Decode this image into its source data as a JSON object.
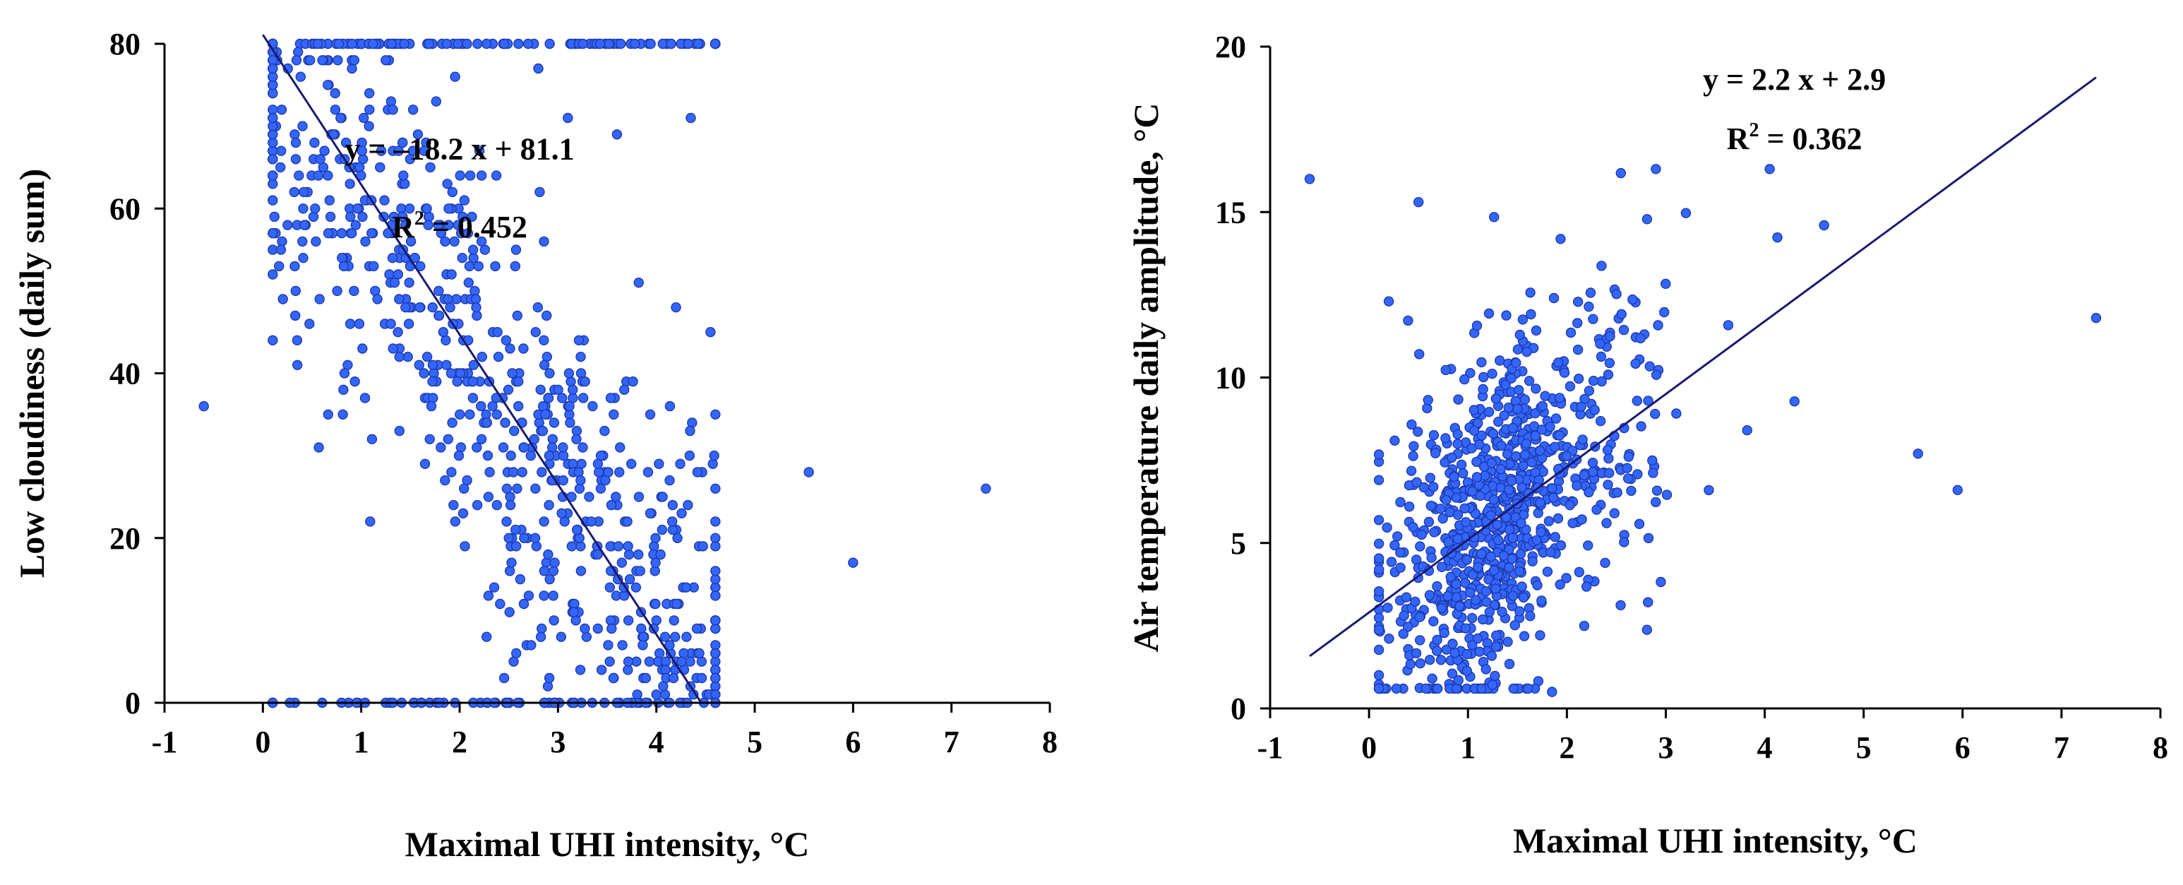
{
  "colors": {
    "point_fill": "#3366ff",
    "point_stroke": "#1f3aa8",
    "trend": "#1a1a6e",
    "axis": "#000000"
  },
  "chart_data": [
    {
      "type": "scatter",
      "title": "",
      "xlabel": "Maximal UHI intensity, °C",
      "ylabel": "Low cloudiness (daily sum)",
      "xlim": [
        -1,
        8
      ],
      "ylim": [
        0,
        80
      ],
      "x_ticks": [
        -1,
        0,
        1,
        2,
        3,
        4,
        5,
        6,
        7,
        8
      ],
      "y_ticks": [
        0,
        20,
        40,
        60,
        80
      ],
      "x_tick_labels": [
        "-1",
        "0",
        "1",
        "2",
        "3",
        "4",
        "5",
        "6",
        "7",
        "8"
      ],
      "y_tick_labels": [
        "0",
        "20",
        "40",
        "60",
        "80"
      ],
      "trendline": {
        "slope": -18.2,
        "intercept": 81.1,
        "x_range": [
          0.0,
          4.45
        ]
      },
      "equation": "y = –18.2 x + 81.1",
      "r2_label": "R",
      "r2_sup": "2",
      "r2_value": " = 0.452",
      "n_points": 900,
      "outliers": [
        [
          -0.6,
          36
        ],
        [
          5.55,
          28
        ],
        [
          6.0,
          17
        ],
        [
          7.35,
          26
        ],
        [
          4.35,
          71
        ],
        [
          3.6,
          69
        ],
        [
          4.2,
          48
        ],
        [
          4.55,
          45
        ],
        [
          2.8,
          77
        ],
        [
          3.1,
          71
        ]
      ]
    },
    {
      "type": "scatter",
      "title": "",
      "xlabel": "Maximal UHI intensity, °C",
      "ylabel": "Air temperature daily amplitude, °C",
      "xlim": [
        -1,
        8
      ],
      "ylim": [
        0,
        20
      ],
      "x_ticks": [
        -1,
        0,
        1,
        2,
        3,
        4,
        5,
        6,
        7,
        8
      ],
      "y_ticks": [
        0,
        5,
        10,
        15,
        20
      ],
      "x_tick_labels": [
        "-1",
        "0",
        "1",
        "2",
        "3",
        "4",
        "5",
        "6",
        "7",
        "8"
      ],
      "y_tick_labels": [
        "0",
        "5",
        "10",
        "15",
        "20"
      ],
      "trendline": {
        "slope": 2.2,
        "intercept": 2.9,
        "x_range": [
          -0.6,
          7.35
        ]
      },
      "equation": "y = 2.2 x + 2.9",
      "r2_label": "R",
      "r2_sup": "2",
      "r2_value": " = 0.362",
      "n_points": 900,
      "outliers": [
        [
          -0.6,
          16
        ],
        [
          0.5,
          15.3
        ],
        [
          7.35,
          11.8
        ],
        [
          5.55,
          7.7
        ],
        [
          5.95,
          6.6
        ],
        [
          2.9,
          16.3
        ],
        [
          4.05,
          16.3
        ],
        [
          0.2,
          12.3
        ],
        [
          1.85,
          0.5
        ],
        [
          4.6,
          14.6
        ]
      ]
    }
  ]
}
